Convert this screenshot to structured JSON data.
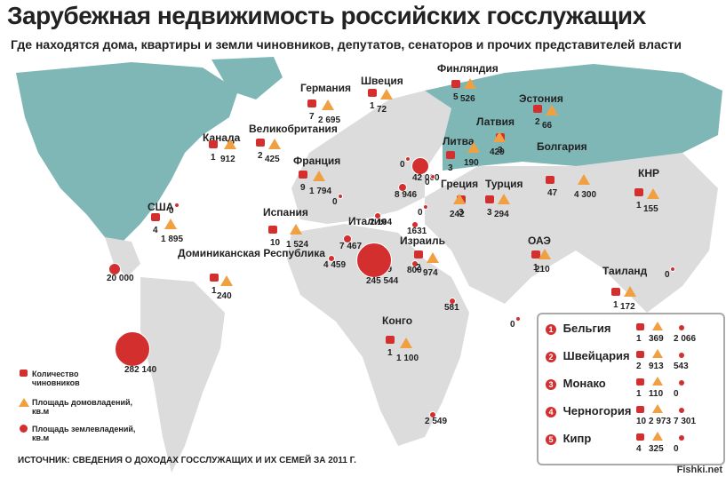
{
  "title": "Зарубежная недвижимость российских госслужащих",
  "subtitle": "Где находятся дома, квартиры и земли чиновников, депутатов, сенаторов и прочих представителей власти",
  "source": "ИСТОЧНИК: СВЕДЕНИЯ О ДОХОДАХ ГОССЛУЖАЩИХ И ИХ СЕМЕЙ ЗА 2011 Г.",
  "watermark": "Fishki.net",
  "colors": {
    "sea": "#ffffff",
    "land": "#dcdcdc",
    "russia": "#7fb6b6",
    "marker": "#d32f2f",
    "house": "#f0a040",
    "ocean_text": "#222222"
  },
  "legend_keys": [
    {
      "icon": "briefcase-icon",
      "label": "Количество чиновников"
    },
    {
      "icon": "house-icon",
      "label": "Площадь домовладений, кв.м"
    },
    {
      "icon": "circle-icon",
      "label": "Площадь землевладений, кв.м"
    }
  ],
  "countries": [
    {
      "name": "Канада",
      "officials": "1",
      "houses": "912",
      "land": "0"
    },
    {
      "name": "США",
      "officials": "4",
      "houses": "1 895",
      "land": "20 000"
    },
    {
      "name": "Доминиканская Республика",
      "officials": "1",
      "houses": "240",
      "land": "282 140"
    },
    {
      "name": "Великобритания",
      "officials": "2",
      "houses": "425",
      "land": "0"
    },
    {
      "name": "Германия",
      "officials": "7",
      "houses": "2 695",
      "land": "2 104"
    },
    {
      "name": "Франция",
      "officials": "9",
      "houses": "1 794",
      "land": "7 467"
    },
    {
      "name": "Испания",
      "officials": "10",
      "houses": "1 524",
      "land": "4 459"
    },
    {
      "name": "Италия",
      "officials": "7",
      "houses": "7 129",
      "land": "245 544"
    },
    {
      "name": "Швеция",
      "officials": "1",
      "houses": "72",
      "land": "0"
    },
    {
      "name": "Финляндия",
      "officials": "5",
      "houses": "526",
      "land": "42 000"
    },
    {
      "name": "Эстония",
      "officials": "2",
      "houses": "66",
      "land": "0"
    },
    {
      "name": "Латвия",
      "officials": "3",
      "houses": "429",
      "land": "8 946"
    },
    {
      "name": "Литва",
      "officials": "3",
      "houses": "190",
      "land": "0"
    },
    {
      "name": "Болгария",
      "officials": "47",
      "houses": "4 300",
      "land": "1631"
    },
    {
      "name": "Греция",
      "officials": "3",
      "houses": "242",
      "land": "800"
    },
    {
      "name": "Турция",
      "officials": "3",
      "houses": "294",
      "land": ""
    },
    {
      "name": "Израиль",
      "officials": "2",
      "houses": "974",
      "land": "581"
    },
    {
      "name": "ОАЭ",
      "officials": "1",
      "houses": "210",
      "land": "0"
    },
    {
      "name": "КНР",
      "officials": "1",
      "houses": "155",
      "land": "0"
    },
    {
      "name": "Таиланд",
      "officials": "1",
      "houses": "172",
      "land": "0"
    },
    {
      "name": "Конго",
      "officials": "1",
      "houses": "1 100",
      "land": "2 549"
    }
  ],
  "inset": [
    {
      "num": "1",
      "name": "Бельгия",
      "officials": "1",
      "houses": "369",
      "land": "2 066"
    },
    {
      "num": "2",
      "name": "Швейцария",
      "officials": "2",
      "houses": "913",
      "land": "543"
    },
    {
      "num": "3",
      "name": "Монако",
      "officials": "1",
      "houses": "110",
      "land": "0"
    },
    {
      "num": "4",
      "name": "Черногория",
      "officials": "10",
      "houses": "2 973",
      "land": "7 301"
    },
    {
      "num": "5",
      "name": "Кипр",
      "officials": "4",
      "houses": "325",
      "land": "0"
    }
  ]
}
